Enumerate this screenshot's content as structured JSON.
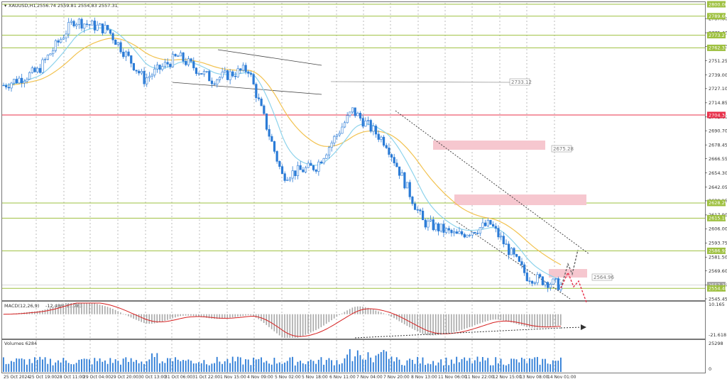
{
  "header": {
    "symbol_label": "XAUUSD,H1",
    "ohlc_text": "2556.74 2559.81 2554.83 2557.31"
  },
  "macd": {
    "label": "MACD(12,26,9)",
    "values_text": "-12.486 -11.783",
    "axis_top": "10.165",
    "axis_bottom": "-21.618"
  },
  "volumes": {
    "label": "Volumes 6284",
    "axis_top": "25298",
    "axis_bottom": "0"
  },
  "price_axis_ticks": [
    "2787.60",
    "2775.40",
    "2763.50",
    "2751.25",
    "2739.00",
    "2727.10",
    "2714.85",
    "2702.60",
    "2690.70",
    "2678.45",
    "2666.55",
    "2654.30",
    "2642.05",
    "2630.15",
    "2617.90",
    "2606.00",
    "2593.75",
    "2581.50",
    "2569.60",
    "2557.35",
    "2545.45"
  ],
  "levels": [
    {
      "value": "2800.00",
      "color": "#9ec040",
      "kind": "hline"
    },
    {
      "value": "2789.69",
      "color": "#9ec040",
      "kind": "hline"
    },
    {
      "value": "2773.27",
      "color": "#9ec040",
      "kind": "hline"
    },
    {
      "value": "2762.33",
      "color": "#9ec040",
      "kind": "hline"
    },
    {
      "value": "2704.34",
      "color": "#e8304a",
      "kind": "hline"
    },
    {
      "value": "2628.29",
      "color": "#9ec040",
      "kind": "hline"
    },
    {
      "value": "2615.18",
      "color": "#9ec040",
      "kind": "hline"
    },
    {
      "value": "2586.92",
      "color": "#9ec040",
      "kind": "hline"
    },
    {
      "value": "2557.31",
      "color": "#a0a0a0",
      "kind": "current"
    },
    {
      "value": "2554.48",
      "color": "#9ec040",
      "kind": "hline"
    }
  ],
  "callout_labels": [
    "2733.12",
    "2675.28",
    "2564.96"
  ],
  "time_axis": [
    "25 Oct 2024",
    "25 Oct 19:00",
    "28 Oct 11:00",
    "29 Oct 04:00",
    "29 Oct 20:00",
    "30 Oct 13:00",
    "31 Oct 06:00",
    "31 Oct 22:00",
    "1 Nov 15:00",
    "4 Nov 09:00",
    "5 Nov 02:00",
    "5 Nov 18:00",
    "6 Nov 11:00",
    "7 Nov 04:00",
    "7 Nov 20:00",
    "8 Nov 13:00",
    "11 Nov 06:00",
    "11 Nov 22:00",
    "12 Nov 15:00",
    "13 Nov 08:00",
    "14 Nov 01:00"
  ],
  "colors": {
    "candle": "#2b7bd6",
    "ema_fast": "#8dd3ec",
    "ema_slow": "#f2c24f",
    "macd_signal": "#d62020",
    "macd_hist": "#a8a8a8",
    "volume": "#2b7bd6",
    "zone": "#f6c7cf",
    "level_green": "#9ec040",
    "level_red": "#e8304a"
  },
  "chart_data": {
    "type": "candlestick",
    "instrument": "XAUUSD",
    "timeframe": "H1",
    "y_range": [
      2545.45,
      2800.0
    ],
    "key_price_path": [
      {
        "t": "25 Oct 2024",
        "price": 2730
      },
      {
        "t": "28 Oct 11:00",
        "price": 2742
      },
      {
        "t": "30 Oct 13:00",
        "price": 2786
      },
      {
        "t": "31 Oct 06:00",
        "price": 2778
      },
      {
        "t": "31 Oct 22:00",
        "price": 2735
      },
      {
        "t": "1 Nov 15:00",
        "price": 2755
      },
      {
        "t": "4 Nov 09:00",
        "price": 2735
      },
      {
        "t": "5 Nov 18:00",
        "price": 2744
      },
      {
        "t": "6 Nov 11:00",
        "price": 2652
      },
      {
        "t": "7 Nov 04:00",
        "price": 2660
      },
      {
        "t": "7 Nov 20:00",
        "price": 2708
      },
      {
        "t": "8 Nov 13:00",
        "price": 2680
      },
      {
        "t": "11 Nov 06:00",
        "price": 2612
      },
      {
        "t": "11 Nov 22:00",
        "price": 2600
      },
      {
        "t": "12 Nov 15:00",
        "price": 2610
      },
      {
        "t": "13 Nov 08:00",
        "price": 2565
      },
      {
        "t": "14 Nov 01:00",
        "price": 2557
      }
    ],
    "zones": [
      {
        "from": 2672,
        "to": 2680,
        "label": "2675.28"
      },
      {
        "from": 2626,
        "to": 2636
      },
      {
        "from": 2562,
        "to": 2568,
        "label": "2564.96"
      }
    ],
    "macd": {
      "main": -12.486,
      "signal": -11.783,
      "range": [
        -21.618,
        10.165
      ]
    },
    "volume_max": 25298
  }
}
